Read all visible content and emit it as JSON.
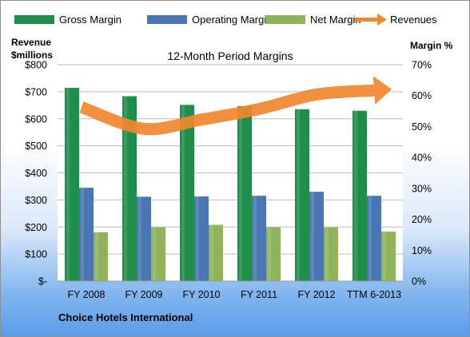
{
  "chart_data": {
    "type": "bar",
    "title": "12-Month Period Margins",
    "categories": [
      "FY 2008",
      "FY 2009",
      "FY 2010",
      "FY 2011",
      "FY 2012",
      "TTM 6-2013"
    ],
    "left_axis": {
      "label_line1": "Revenue",
      "label_line2": "$millions",
      "range": [
        0,
        800
      ],
      "ticks": [
        "$-",
        "$100",
        "$200",
        "$300",
        "$400",
        "$500",
        "$600",
        "$700",
        "$800"
      ]
    },
    "right_axis": {
      "label": "Margin  %",
      "range": [
        0,
        70
      ],
      "ticks": [
        "0%",
        "10%",
        "20%",
        "30%",
        "40%",
        "50%",
        "60%",
        "70%"
      ]
    },
    "series": [
      {
        "name": "Gross Margin",
        "type": "bar",
        "axis": "right",
        "color": "#1e8f4a",
        "values": [
          62.5,
          59.8,
          57.0,
          56.6,
          55.6,
          55.1
        ]
      },
      {
        "name": "Operating Margin",
        "type": "bar",
        "axis": "right",
        "color": "#4a77b4",
        "values": [
          30.2,
          27.3,
          27.4,
          27.6,
          28.9,
          27.6
        ]
      },
      {
        "name": "Net Margin",
        "type": "bar",
        "axis": "right",
        "color": "#8fb35a",
        "values": [
          15.8,
          17.4,
          18.2,
          17.4,
          17.4,
          16.0
        ]
      },
      {
        "name": "Revenues",
        "type": "trend-arrow",
        "axis": "left",
        "color": "#f0882f",
        "values": [
          643,
          563,
          597,
          636,
          690,
          705
        ]
      }
    ],
    "grid": true,
    "legend_placement": "top"
  },
  "footer": {
    "company": "Choice Hotels International"
  }
}
